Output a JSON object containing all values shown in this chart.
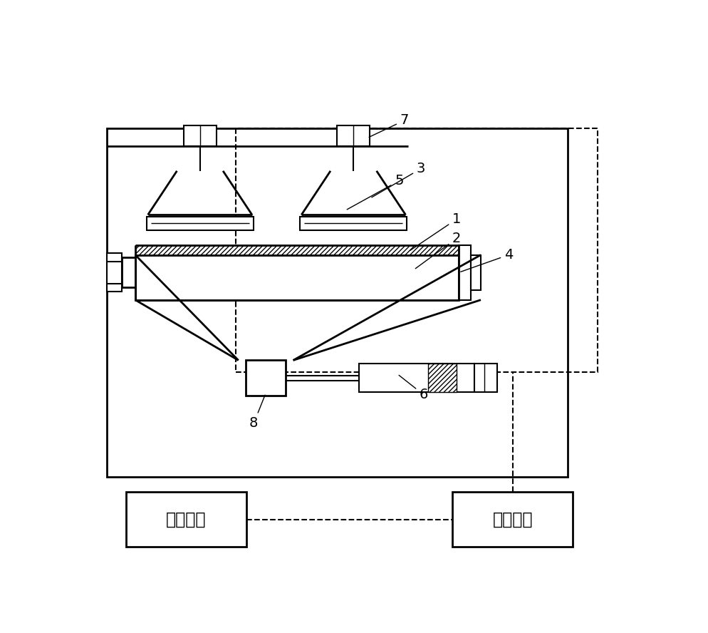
{
  "bg_color": "#ffffff",
  "black": "#000000",
  "fig_w": 9.94,
  "fig_h": 8.88,
  "dpi": 100
}
